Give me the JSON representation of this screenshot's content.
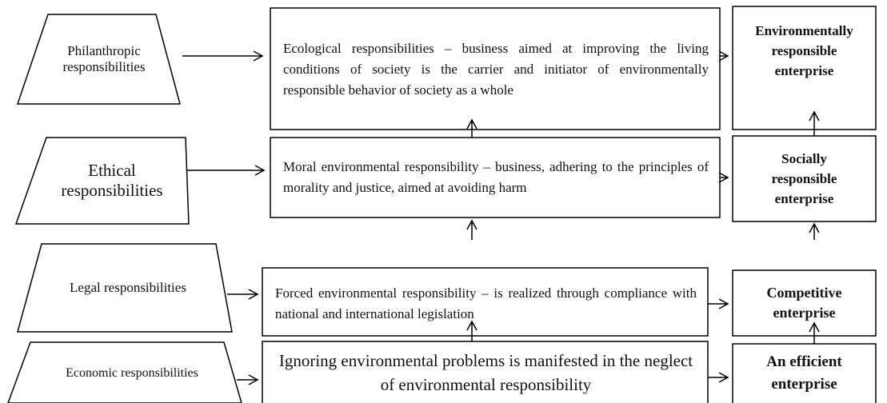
{
  "rows": [
    {
      "left": "Philanthropic responsibilities",
      "middle": "Ecological responsibilities – business aimed at improving the living conditions of society is the carrier and initiator of environmentally responsible behavior of society as a whole",
      "right": "Environmentally responsible enterprise"
    },
    {
      "left": "Ethical responsibilities",
      "middle": "Moral environmental responsibility – business, adhering to the principles of morality and justice, aimed at avoiding harm",
      "right": "Socially responsible enterprise"
    },
    {
      "left": "Legal responsibilities",
      "middle": "Forced environmental responsibility – is realized through compliance with national and international legislation",
      "right": "Competitive enterprise"
    },
    {
      "left": "Economic responsibilities",
      "middle": "Ignoring environmental problems is manifested in the neglect of environmental responsibility",
      "right": "An efficient enterprise"
    }
  ]
}
